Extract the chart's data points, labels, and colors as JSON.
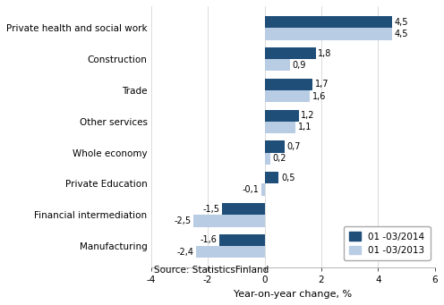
{
  "categories": [
    "Manufacturing",
    "Financial intermediation",
    "Private Education",
    "Whole economy",
    "Other services",
    "Trade",
    "Construction",
    "Private health and social work"
  ],
  "values_2014": [
    -1.6,
    -1.5,
    0.5,
    0.7,
    1.2,
    1.7,
    1.8,
    4.5
  ],
  "values_2013": [
    -2.4,
    -2.5,
    -0.1,
    0.2,
    1.1,
    1.6,
    0.9,
    4.5
  ],
  "color_2014": "#1F4E79",
  "color_2013": "#B8CCE4",
  "xlabel": "Year-on-year change, %",
  "legend_2014": "01 -03/2014",
  "legend_2013": "01 -03/2013",
  "xlim": [
    -4,
    6
  ],
  "xticks": [
    -4,
    -2,
    0,
    2,
    4,
    6
  ],
  "source": "Source: StatisticsFinland",
  "bar_height": 0.38,
  "label_fontsize": 7.0,
  "tick_fontsize": 7.5,
  "xlabel_fontsize": 8.0,
  "legend_fontsize": 7.5
}
